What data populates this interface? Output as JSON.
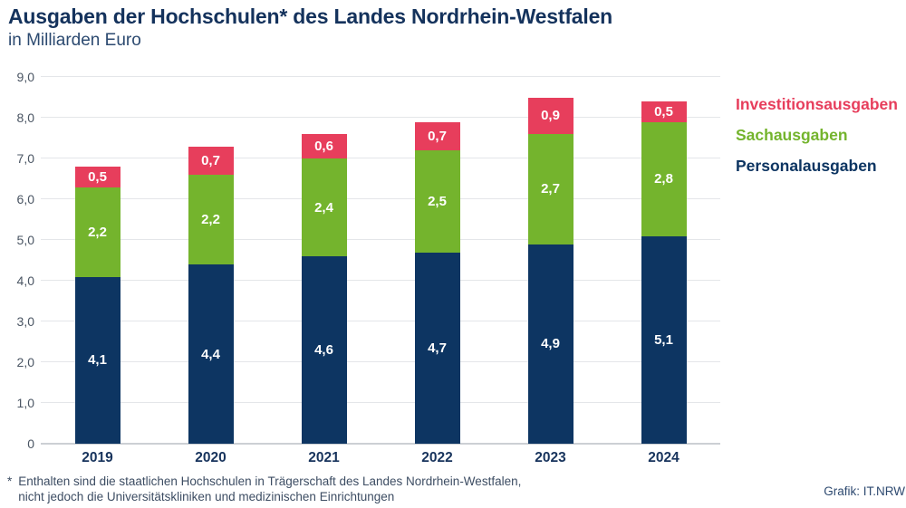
{
  "header": {
    "title": "Ausgaben der Hochschulen* des Landes Nordrhein-Westfalen",
    "subtitle": "in Milliarden Euro"
  },
  "chart_data": {
    "type": "bar",
    "stacked": true,
    "title": "Ausgaben der Hochschulen* des Landes Nordrhein-Westfalen",
    "subtitle_unit": "in Milliarden Euro",
    "categories": [
      "2019",
      "2020",
      "2021",
      "2022",
      "2023",
      "2024"
    ],
    "series": [
      {
        "name": "Personalausgaben",
        "color": "#0d3562",
        "values": [
          4.1,
          4.4,
          4.6,
          4.7,
          4.9,
          5.1
        ],
        "labels": [
          "4,1",
          "4,4",
          "4,6",
          "4,7",
          "4,9",
          "5,1"
        ]
      },
      {
        "name": "Sachausgaben",
        "color": "#74b42d",
        "values": [
          2.2,
          2.2,
          2.4,
          2.5,
          2.7,
          2.8
        ],
        "labels": [
          "2,2",
          "2,2",
          "2,4",
          "2,5",
          "2,7",
          "2,8"
        ]
      },
      {
        "name": "Investitionsausgaben",
        "color": "#e73e5c",
        "values": [
          0.5,
          0.7,
          0.6,
          0.7,
          0.9,
          0.5
        ],
        "labels": [
          "0,5",
          "0,7",
          "0,6",
          "0,7",
          "0,9",
          "0,5"
        ]
      }
    ],
    "legend": [
      {
        "name": "Investitionsausgaben",
        "color": "#e73e5c"
      },
      {
        "name": "Sachausgaben",
        "color": "#74b42d"
      },
      {
        "name": "Personalausgaben",
        "color": "#0d3562"
      }
    ],
    "legend_position": "right",
    "grid": true,
    "ylim": [
      0,
      9
    ],
    "y_ticks": [
      {
        "value": 0,
        "label": "0"
      },
      {
        "value": 1,
        "label": "1,0"
      },
      {
        "value": 2,
        "label": "2,0"
      },
      {
        "value": 3,
        "label": "3,0"
      },
      {
        "value": 4,
        "label": "4,0"
      },
      {
        "value": 5,
        "label": "5,0"
      },
      {
        "value": 6,
        "label": "6,0"
      },
      {
        "value": 7,
        "label": "7,0"
      },
      {
        "value": 8,
        "label": "8,0"
      },
      {
        "value": 9,
        "label": "9,0"
      }
    ]
  },
  "footer": {
    "footnote_marker": "*",
    "footnote_line1": "Enthalten sind die staatlichen Hochschulen in Trägerschaft des Landes Nordrhein-Westfalen,",
    "footnote_line2": "nicht jedoch die Universitätskliniken und medizinischen Einrichtungen",
    "credit": "Grafik: IT.NRW"
  }
}
